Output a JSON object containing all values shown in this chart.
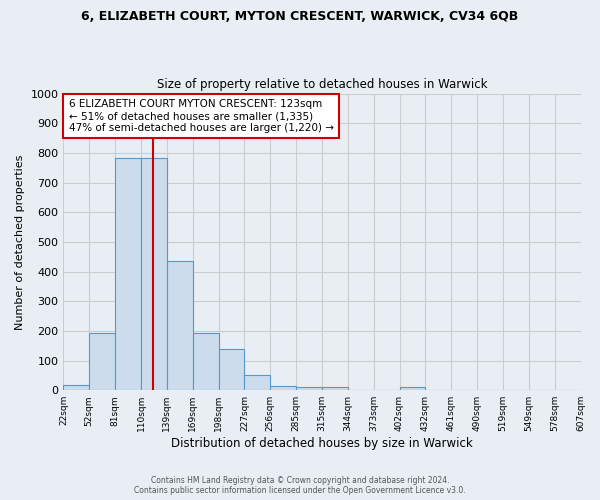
{
  "title_line1": "6, ELIZABETH COURT, MYTON CRESCENT, WARWICK, CV34 6QB",
  "title_line2": "Size of property relative to detached houses in Warwick",
  "xlabel": "Distribution of detached houses by size in Warwick",
  "ylabel": "Number of detached properties",
  "bar_values": [
    18,
    193,
    783,
    783,
    437,
    193,
    140,
    50,
    14,
    10,
    10,
    0,
    0,
    10,
    0,
    0,
    0,
    0,
    0,
    0
  ],
  "bin_labels": [
    "22sqm",
    "52sqm",
    "81sqm",
    "110sqm",
    "139sqm",
    "169sqm",
    "198sqm",
    "227sqm",
    "256sqm",
    "285sqm",
    "315sqm",
    "344sqm",
    "373sqm",
    "402sqm",
    "432sqm",
    "461sqm",
    "490sqm",
    "519sqm",
    "549sqm",
    "578sqm",
    "607sqm"
  ],
  "bar_color": "#ccdcec",
  "bar_edge_color": "#5599cc",
  "grid_color": "#cccccc",
  "bg_color": "#e8eef4",
  "vline_color": "#cc0000",
  "vline_bin_index": 3,
  "annotation_text": "6 ELIZABETH COURT MYTON CRESCENT: 123sqm\n← 51% of detached houses are smaller (1,335)\n47% of semi-detached houses are larger (1,220) →",
  "annotation_box_color": "#ffffff",
  "annotation_box_edge": "#cc0000",
  "ylim": [
    0,
    1000
  ],
  "yticks": [
    0,
    100,
    200,
    300,
    400,
    500,
    600,
    700,
    800,
    900,
    1000
  ],
  "footer_line1": "Contains HM Land Registry data © Crown copyright and database right 2024.",
  "footer_line2": "Contains public sector information licensed under the Open Government Licence v3.0."
}
